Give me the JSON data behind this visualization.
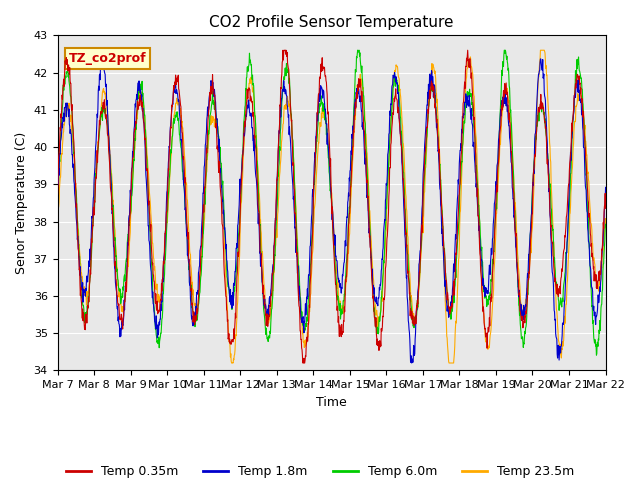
{
  "title": "CO2 Profile Sensor Temperature",
  "ylabel": "Senor Temperature (C)",
  "xlabel": "Time",
  "ylim": [
    34.0,
    43.0
  ],
  "yticks": [
    34.0,
    35.0,
    36.0,
    37.0,
    38.0,
    39.0,
    40.0,
    41.0,
    42.0,
    43.0
  ],
  "xtick_labels": [
    "Mar 7",
    "Mar 8",
    "Mar 9",
    "Mar 10",
    "Mar 11",
    "Mar 12",
    "Mar 13",
    "Mar 14",
    "Mar 15",
    "Mar 16",
    "Mar 17",
    "Mar 18",
    "Mar 19",
    "Mar 20",
    "Mar 21",
    "Mar 22"
  ],
  "n_days": 15,
  "points_per_day": 96,
  "colors": {
    "Temp 0.35m": "#cc0000",
    "Temp 1.8m": "#0000cc",
    "Temp 6.0m": "#00cc00",
    "Temp 23.5m": "#ffaa00"
  },
  "legend_box_label": "TZ_co2prof",
  "legend_box_facecolor": "#ffffcc",
  "legend_box_edgecolor": "#cc8800",
  "plot_bg_color": "#e8e8e8",
  "fig_bg_color": "#ffffff",
  "title_fontsize": 11,
  "axis_label_fontsize": 9,
  "tick_label_fontsize": 8,
  "legend_fontsize": 9
}
